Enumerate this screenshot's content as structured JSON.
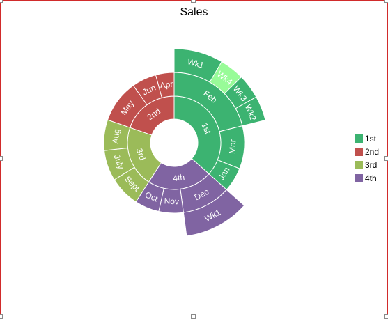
{
  "chart_data": {
    "type": "sunburst",
    "title": "Sales",
    "colors": {
      "1st": "#3cb371",
      "2nd": "#c0504d",
      "3rd": "#9bbb59",
      "4th": "#8064a2",
      "Wk4": "#98fb98"
    },
    "quarters": [
      {
        "label": "1st",
        "months": [
          {
            "label": "Feb",
            "weeks": [
              {
                "label": "Wk1",
                "value": 3
              },
              {
                "label": "Wk4",
                "value": 1.5
              },
              {
                "label": "Wk3",
                "value": 1.5
              },
              {
                "label": "Wk2",
                "value": 1.5
              }
            ]
          },
          {
            "label": "Mar",
            "value": 3.5
          },
          {
            "label": "Jan",
            "value": 2
          }
        ]
      },
      {
        "label": "4th",
        "months": [
          {
            "label": "Dec",
            "weeks": [
              {
                "label": "Wk1",
                "value": 4
              }
            ]
          },
          {
            "label": "Nov",
            "value": 2
          },
          {
            "label": "Oct",
            "value": 2
          }
        ]
      },
      {
        "label": "3rd",
        "months": [
          {
            "label": "Sept",
            "value": 2.5
          },
          {
            "label": "July",
            "value": 2.5
          },
          {
            "label": "Aug",
            "value": 2.5
          }
        ]
      },
      {
        "label": "2nd",
        "months": [
          {
            "label": "May",
            "value": 3.5
          },
          {
            "label": "Jun",
            "value": 2
          },
          {
            "label": "Apr",
            "value": 1.5
          }
        ]
      }
    ],
    "legend": [
      {
        "label": "1st",
        "color": "#3cb371"
      },
      {
        "label": "2nd",
        "color": "#c0504d"
      },
      {
        "label": "3rd",
        "color": "#9bbb59"
      },
      {
        "label": "4th",
        "color": "#8064a2"
      }
    ],
    "legend_position": "right"
  }
}
